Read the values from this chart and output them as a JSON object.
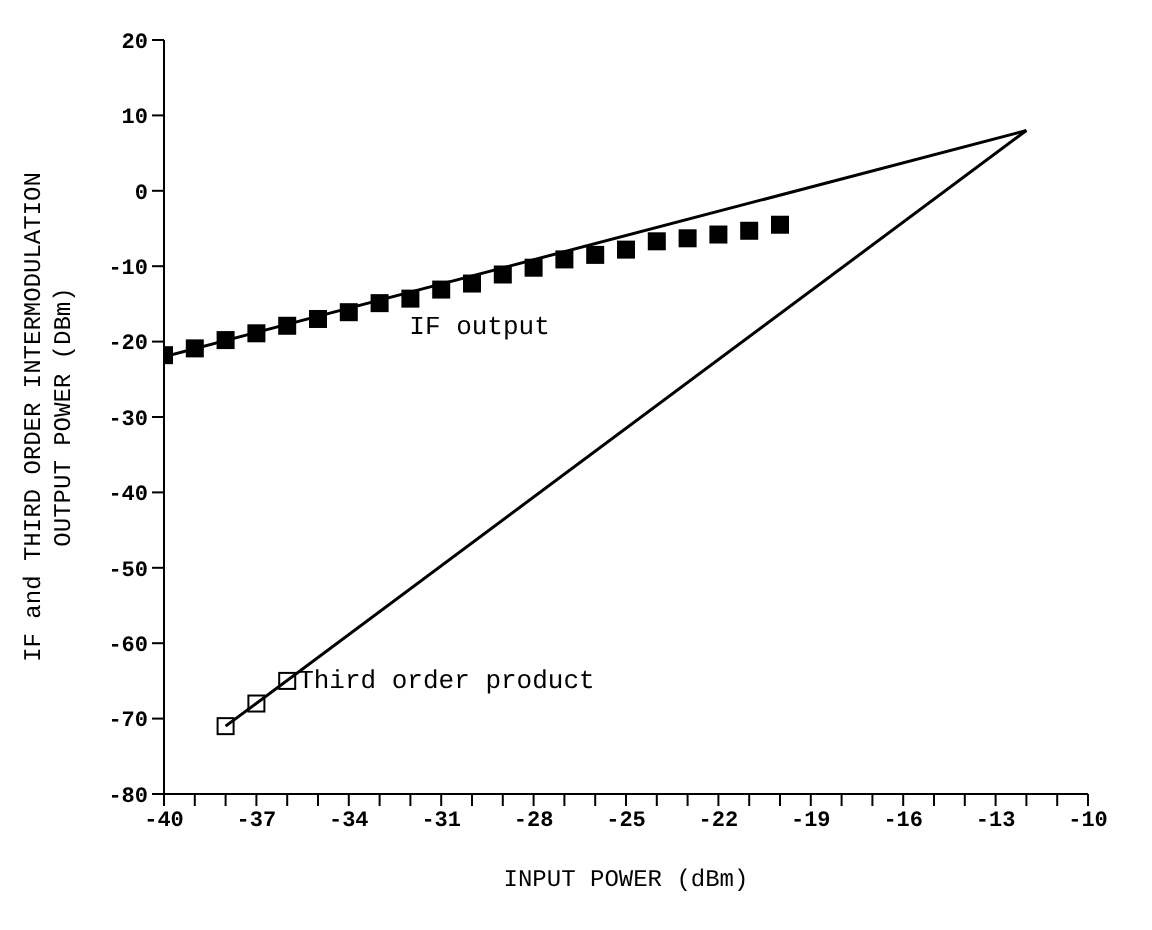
{
  "chart_data": {
    "type": "scatter",
    "xlabel": "INPUT POWER (dBm)",
    "ylabel": "IF and THIRD ORDER INTERMODULATION OUTPUT POWER (DBm)",
    "xlim": [
      -40,
      -10
    ],
    "xticks": [
      -40,
      {
        "value": -39,
        "label": null
      },
      {
        "value": -38,
        "label": null
      },
      -37,
      {
        "value": -36,
        "label": null
      },
      {
        "value": -35,
        "label": null
      },
      -34,
      {
        "value": -33,
        "label": null
      },
      {
        "value": -32,
        "label": null
      },
      -31,
      {
        "value": -30,
        "label": null
      },
      {
        "value": -29,
        "label": null
      },
      -28,
      {
        "value": -27,
        "label": null
      },
      {
        "value": -26,
        "label": null
      },
      -25,
      {
        "value": -24,
        "label": null
      },
      {
        "value": -23,
        "label": null
      },
      -22,
      {
        "value": -21,
        "label": null
      },
      {
        "value": -20,
        "label": null
      },
      -19,
      {
        "value": -18,
        "label": null
      },
      {
        "value": -17,
        "label": null
      },
      -16,
      {
        "value": -15,
        "label": null
      },
      {
        "value": -14,
        "label": null
      },
      -13,
      {
        "value": -12,
        "label": null
      },
      {
        "value": -11,
        "label": null
      },
      -10
    ],
    "ylim": [
      -80,
      20
    ],
    "yticks": [
      -80,
      -70,
      -60,
      -50,
      -40,
      -30,
      -20,
      -10,
      0,
      10,
      20
    ],
    "grid": false,
    "legend": false,
    "marker": "square",
    "series": [
      {
        "name": "IF output",
        "color": "#000000",
        "x": [
          -40,
          -39,
          -38,
          -37,
          -36,
          -35,
          -34,
          -33,
          -32,
          -31,
          -30,
          -29,
          -28,
          -27,
          -26,
          -25,
          -24,
          -23,
          -22,
          -21,
          -20
        ],
        "values": [
          -21.8,
          -20.9,
          -19.8,
          -18.9,
          -17.9,
          -17,
          -16.1,
          -14.9,
          -14.3,
          -13.1,
          -12.3,
          -11.1,
          -10.2,
          -9.1,
          -8.5,
          -7.8,
          -6.7,
          -6.3,
          -5.8,
          -5.3,
          -4.5
        ]
      },
      {
        "name": "Third order product",
        "color": "#000000",
        "x": [
          -38,
          -37,
          -36
        ],
        "values": [
          -71,
          -68,
          -65
        ]
      },
      {
        "type": "line",
        "color": "#000000",
        "marker": "none",
        "x": [
          -40,
          -12
        ],
        "values": [
          -22,
          8
        ]
      },
      {
        "type": "line",
        "color": "#000000",
        "marker": "none",
        "x": [
          -38,
          -12
        ],
        "values": [
          -71,
          8
        ]
      }
    ]
  }
}
